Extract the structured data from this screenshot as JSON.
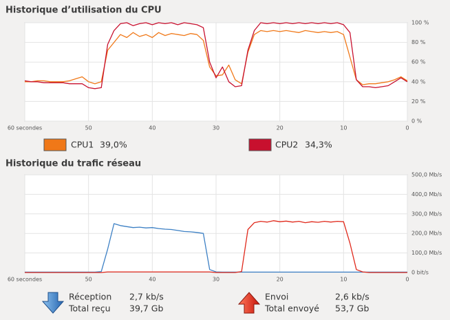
{
  "chart_data": [
    {
      "type": "line",
      "title": "Historique d’utilisation du CPU",
      "x": [
        60,
        59,
        58,
        57,
        56,
        55,
        54,
        53,
        52,
        51,
        50,
        49,
        48,
        47,
        46,
        45,
        44,
        43,
        42,
        41,
        40,
        39,
        38,
        37,
        36,
        35,
        34,
        33,
        32,
        31,
        30,
        29,
        28,
        27,
        26,
        25,
        24,
        23,
        22,
        21,
        20,
        19,
        18,
        17,
        16,
        15,
        14,
        13,
        12,
        11,
        10,
        9,
        8,
        7,
        6,
        5,
        4,
        3,
        2,
        1,
        0
      ],
      "xlim": [
        60,
        0
      ],
      "xticks": [
        {
          "value": 60,
          "label": "60 secondes"
        },
        50,
        40,
        30,
        20,
        10,
        0
      ],
      "ylim": [
        0,
        100
      ],
      "yticks": [
        {
          "value": 0,
          "label": "0 %"
        },
        {
          "value": 20,
          "label": "20 %"
        },
        {
          "value": 40,
          "label": "40 %"
        },
        {
          "value": 60,
          "label": "60 %"
        },
        {
          "value": 80,
          "label": "80 %"
        },
        {
          "value": 100,
          "label": "100 %"
        }
      ],
      "grid": true,
      "series": [
        {
          "name": "CPU1",
          "color": "#f07818",
          "legend_value": "39,0%",
          "values": [
            40,
            40,
            41,
            41,
            40,
            40,
            40,
            41,
            43,
            45,
            40,
            38,
            40,
            72,
            80,
            88,
            85,
            90,
            86,
            88,
            85,
            90,
            87,
            89,
            88,
            87,
            89,
            88,
            82,
            55,
            46,
            47,
            57,
            42,
            38,
            70,
            88,
            92,
            91,
            92,
            91,
            92,
            91,
            90,
            92,
            91,
            90,
            91,
            90,
            91,
            88,
            65,
            42,
            37,
            38,
            38,
            39,
            40,
            42,
            45,
            41
          ]
        },
        {
          "name": "CPU2",
          "color": "#c8102e",
          "legend_value": "34,3%",
          "values": [
            41,
            40,
            40,
            39,
            39,
            39,
            39,
            38,
            38,
            38,
            34,
            33,
            34,
            78,
            92,
            99,
            100,
            97,
            99,
            100,
            98,
            100,
            99,
            100,
            98,
            100,
            99,
            98,
            95,
            60,
            44,
            55,
            40,
            35,
            36,
            72,
            92,
            100,
            99,
            100,
            99,
            100,
            99,
            100,
            99,
            100,
            99,
            100,
            99,
            100,
            98,
            90,
            42,
            35,
            35,
            34,
            35,
            36,
            40,
            44,
            40
          ]
        }
      ]
    },
    {
      "type": "line",
      "title": "Historique du trafic réseau",
      "x": [
        60,
        59,
        58,
        57,
        56,
        55,
        54,
        53,
        52,
        51,
        50,
        49,
        48,
        47,
        46,
        45,
        44,
        43,
        42,
        41,
        40,
        39,
        38,
        37,
        36,
        35,
        34,
        33,
        32,
        31,
        30,
        29,
        28,
        27,
        26,
        25,
        24,
        23,
        22,
        21,
        20,
        19,
        18,
        17,
        16,
        15,
        14,
        13,
        12,
        11,
        10,
        9,
        8,
        7,
        6,
        5,
        4,
        3,
        2,
        1,
        0
      ],
      "xlim": [
        60,
        0
      ],
      "xticks": [
        {
          "value": 60,
          "label": "60 secondes"
        },
        50,
        40,
        30,
        20,
        10,
        0
      ],
      "ylim": [
        0,
        500
      ],
      "yticks": [
        {
          "value": 0,
          "label": "0 bit/s"
        },
        {
          "value": 100,
          "label": "100,0 Mb/s"
        },
        {
          "value": 200,
          "label": "200,0 Mb/s"
        },
        {
          "value": 300,
          "label": "300,0 Mb/s"
        },
        {
          "value": 400,
          "label": "400,0 Mb/s"
        },
        {
          "value": 500,
          "label": "500,0 Mb/s"
        }
      ],
      "grid": true,
      "series": [
        {
          "name": "Réception",
          "color": "#3b7fc4",
          "rate": "2,7 kb/s",
          "total_label": "Total reçu",
          "total": "39,7 Gb",
          "values": [
            2,
            2,
            2,
            2,
            2,
            2,
            2,
            2,
            2,
            2,
            2,
            2,
            5,
            120,
            250,
            240,
            235,
            230,
            232,
            228,
            230,
            225,
            222,
            220,
            215,
            210,
            208,
            205,
            200,
            15,
            3,
            2,
            2,
            2,
            2,
            2,
            2,
            2,
            2,
            2,
            2,
            2,
            2,
            2,
            2,
            2,
            2,
            2,
            2,
            2,
            2,
            2,
            2,
            2,
            2,
            2,
            2,
            2,
            2,
            2,
            2
          ]
        },
        {
          "name": "Envoi",
          "color": "#e0281a",
          "rate": "2,6 kb/s",
          "total_label": "Total envoyé",
          "total": "53,7 Gb",
          "values": [
            0,
            0,
            0,
            0,
            0,
            0,
            0,
            0,
            0,
            0,
            0,
            0,
            0,
            3,
            3,
            3,
            3,
            3,
            3,
            3,
            3,
            3,
            3,
            3,
            3,
            3,
            3,
            3,
            3,
            3,
            0,
            0,
            0,
            0,
            5,
            220,
            255,
            262,
            258,
            265,
            260,
            263,
            258,
            262,
            255,
            260,
            257,
            262,
            258,
            262,
            260,
            150,
            15,
            3,
            0,
            0,
            0,
            0,
            0,
            0,
            0
          ]
        }
      ]
    }
  ]
}
